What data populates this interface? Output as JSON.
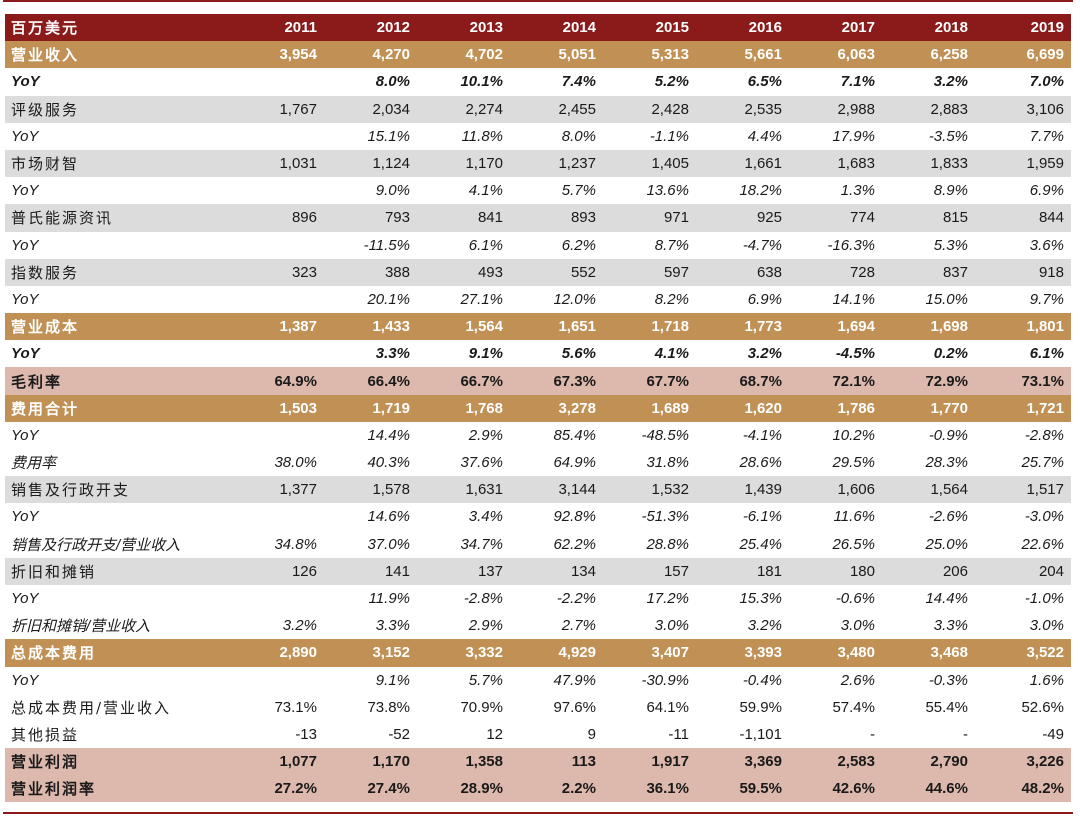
{
  "table": {
    "header": {
      "label": "百万美元",
      "years": [
        "2011",
        "2012",
        "2013",
        "2014",
        "2015",
        "2016",
        "2017",
        "2018",
        "2019"
      ]
    },
    "rows": [
      {
        "label": "营业收入",
        "style": "gold",
        "values": [
          "3,954",
          "4,270",
          "4,702",
          "5,051",
          "5,313",
          "5,661",
          "6,063",
          "6,258",
          "6,699"
        ]
      },
      {
        "label": "YoY",
        "style": "white-it-bold",
        "values": [
          "",
          "8.0%",
          "10.1%",
          "7.4%",
          "5.2%",
          "6.5%",
          "7.1%",
          "3.2%",
          "7.0%"
        ]
      },
      {
        "label": "评级服务",
        "style": "grey",
        "values": [
          "1,767",
          "2,034",
          "2,274",
          "2,455",
          "2,428",
          "2,535",
          "2,988",
          "2,883",
          "3,106"
        ]
      },
      {
        "label": "YoY",
        "style": "white-it",
        "values": [
          "",
          "15.1%",
          "11.8%",
          "8.0%",
          "-1.1%",
          "4.4%",
          "17.9%",
          "-3.5%",
          "7.7%"
        ]
      },
      {
        "label": "市场财智",
        "style": "grey",
        "values": [
          "1,031",
          "1,124",
          "1,170",
          "1,237",
          "1,405",
          "1,661",
          "1,683",
          "1,833",
          "1,959"
        ]
      },
      {
        "label": "YoY",
        "style": "white-it",
        "values": [
          "",
          "9.0%",
          "4.1%",
          "5.7%",
          "13.6%",
          "18.2%",
          "1.3%",
          "8.9%",
          "6.9%"
        ]
      },
      {
        "label": "普氏能源资讯",
        "style": "grey",
        "values": [
          "896",
          "793",
          "841",
          "893",
          "971",
          "925",
          "774",
          "815",
          "844"
        ]
      },
      {
        "label": "YoY",
        "style": "white-it",
        "values": [
          "",
          "-11.5%",
          "6.1%",
          "6.2%",
          "8.7%",
          "-4.7%",
          "-16.3%",
          "5.3%",
          "3.6%"
        ]
      },
      {
        "label": "指数服务",
        "style": "grey",
        "values": [
          "323",
          "388",
          "493",
          "552",
          "597",
          "638",
          "728",
          "837",
          "918"
        ]
      },
      {
        "label": "YoY",
        "style": "white-it",
        "values": [
          "",
          "20.1%",
          "27.1%",
          "12.0%",
          "8.2%",
          "6.9%",
          "14.1%",
          "15.0%",
          "9.7%"
        ]
      },
      {
        "label": "营业成本",
        "style": "gold",
        "values": [
          "1,387",
          "1,433",
          "1,564",
          "1,651",
          "1,718",
          "1,773",
          "1,694",
          "1,698",
          "1,801"
        ]
      },
      {
        "label": "YoY",
        "style": "white-it-bold",
        "values": [
          "",
          "3.3%",
          "9.1%",
          "5.6%",
          "4.1%",
          "3.2%",
          "-4.5%",
          "0.2%",
          "6.1%"
        ]
      },
      {
        "label": "毛利率",
        "style": "pink",
        "values": [
          "64.9%",
          "66.4%",
          "66.7%",
          "67.3%",
          "67.7%",
          "68.7%",
          "72.1%",
          "72.9%",
          "73.1%"
        ]
      },
      {
        "label": "费用合计",
        "style": "gold",
        "values": [
          "1,503",
          "1,719",
          "1,768",
          "3,278",
          "1,689",
          "1,620",
          "1,786",
          "1,770",
          "1,721"
        ]
      },
      {
        "label": "YoY",
        "style": "white-it",
        "values": [
          "",
          "14.4%",
          "2.9%",
          "85.4%",
          "-48.5%",
          "-4.1%",
          "10.2%",
          "-0.9%",
          "-2.8%"
        ]
      },
      {
        "label": "费用率",
        "style": "white-it",
        "values": [
          "38.0%",
          "40.3%",
          "37.6%",
          "64.9%",
          "31.8%",
          "28.6%",
          "29.5%",
          "28.3%",
          "25.7%"
        ]
      },
      {
        "label": "销售及行政开支",
        "style": "grey",
        "values": [
          "1,377",
          "1,578",
          "1,631",
          "3,144",
          "1,532",
          "1,439",
          "1,606",
          "1,564",
          "1,517"
        ]
      },
      {
        "label": "YoY",
        "style": "white-it",
        "values": [
          "",
          "14.6%",
          "3.4%",
          "92.8%",
          "-51.3%",
          "-6.1%",
          "11.6%",
          "-2.6%",
          "-3.0%"
        ]
      },
      {
        "label": "销售及行政开支/营业收入",
        "style": "white-it",
        "values": [
          "34.8%",
          "37.0%",
          "34.7%",
          "62.2%",
          "28.8%",
          "25.4%",
          "26.5%",
          "25.0%",
          "22.6%"
        ]
      },
      {
        "label": "折旧和摊销",
        "style": "grey",
        "values": [
          "126",
          "141",
          "137",
          "134",
          "157",
          "181",
          "180",
          "206",
          "204"
        ]
      },
      {
        "label": "YoY",
        "style": "white-it",
        "values": [
          "",
          "11.9%",
          "-2.8%",
          "-2.2%",
          "17.2%",
          "15.3%",
          "-0.6%",
          "14.4%",
          "-1.0%"
        ]
      },
      {
        "label": "折旧和摊销/营业收入",
        "style": "white-it",
        "values": [
          "3.2%",
          "3.3%",
          "2.9%",
          "2.7%",
          "3.0%",
          "3.2%",
          "3.0%",
          "3.3%",
          "3.0%"
        ]
      },
      {
        "label": "总成本费用",
        "style": "gold",
        "values": [
          "2,890",
          "3,152",
          "3,332",
          "4,929",
          "3,407",
          "3,393",
          "3,480",
          "3,468",
          "3,522"
        ]
      },
      {
        "label": "YoY",
        "style": "white-it",
        "values": [
          "",
          "9.1%",
          "5.7%",
          "47.9%",
          "-30.9%",
          "-0.4%",
          "2.6%",
          "-0.3%",
          "1.6%"
        ]
      },
      {
        "label": "总成本费用/营业收入",
        "style": "white",
        "values": [
          "73.1%",
          "73.8%",
          "70.9%",
          "97.6%",
          "64.1%",
          "59.9%",
          "57.4%",
          "55.4%",
          "52.6%"
        ]
      },
      {
        "label": "其他损益",
        "style": "white",
        "values": [
          "-13",
          "-52",
          "12",
          "9",
          "-11",
          "-1,101",
          "-",
          "-",
          "-49"
        ]
      },
      {
        "label": "营业利润",
        "style": "pink",
        "values": [
          "1,077",
          "1,170",
          "1,358",
          "113",
          "1,917",
          "3,369",
          "2,583",
          "2,790",
          "3,226"
        ]
      },
      {
        "label": "营业利润率",
        "style": "pink",
        "values": [
          "27.2%",
          "27.4%",
          "28.9%",
          "2.2%",
          "36.1%",
          "59.5%",
          "42.6%",
          "44.6%",
          "48.2%"
        ]
      }
    ]
  }
}
